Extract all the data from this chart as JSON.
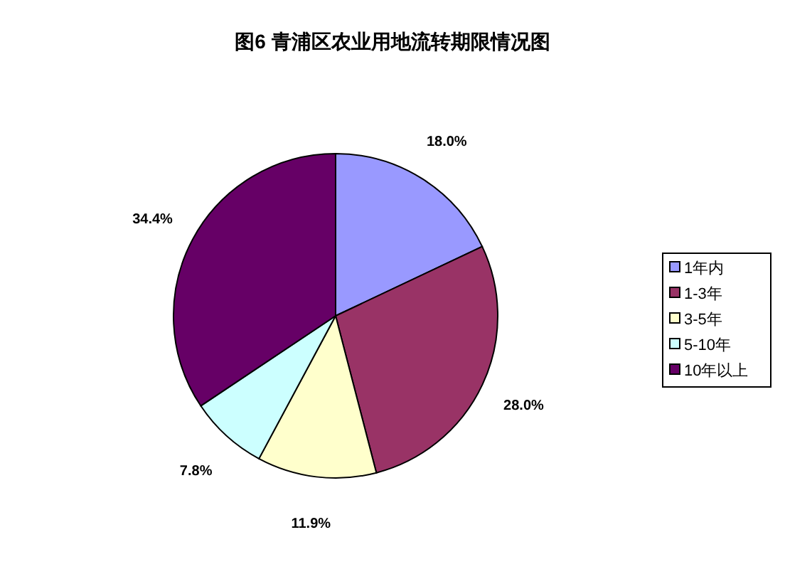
{
  "chart_data": {
    "type": "pie",
    "title": "图6  青浦区农业用地流转期限情况图",
    "categories": [
      "1年内",
      "1-3年",
      "3-5年",
      "5-10年",
      "10年以上"
    ],
    "values": [
      18.0,
      28.0,
      11.9,
      7.8,
      34.4
    ],
    "colors": [
      "#9999ff",
      "#993366",
      "#ffffcc",
      "#ccffff",
      "#660066"
    ],
    "value_labels": [
      "18.0%",
      "28.0%",
      "11.9%",
      "7.8%",
      "34.4%"
    ],
    "legend": "right"
  }
}
